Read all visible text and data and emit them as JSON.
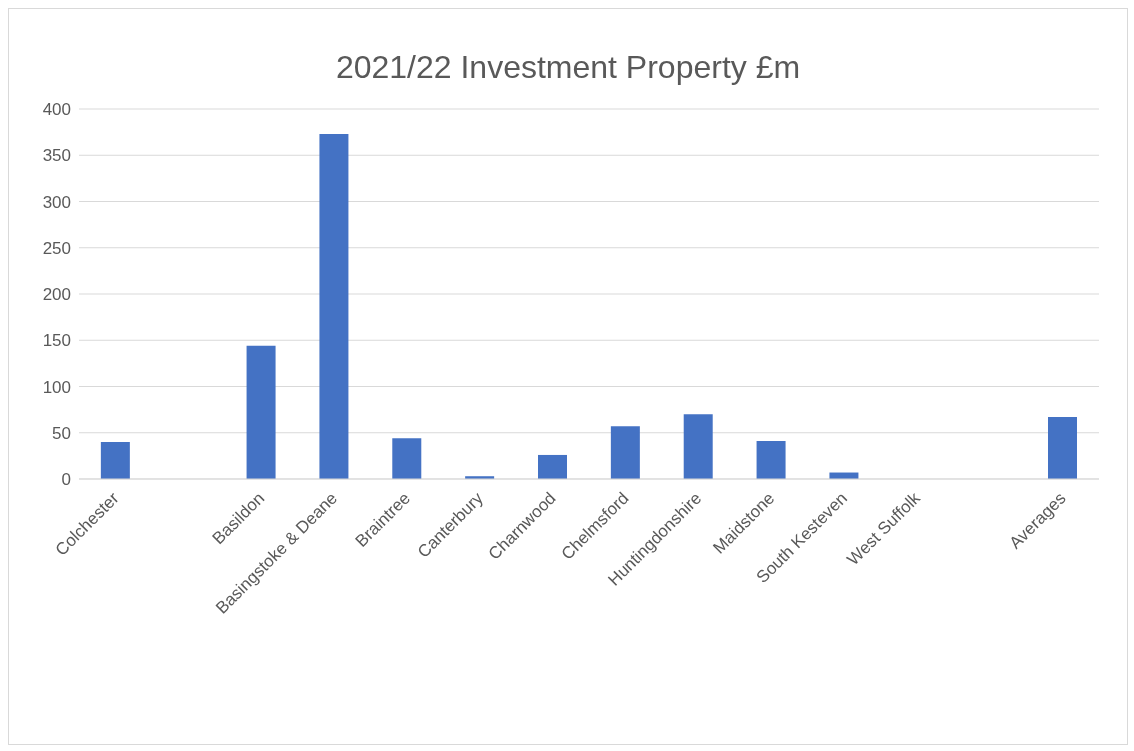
{
  "chart_data": {
    "type": "bar",
    "title": "2021/22 Investment Property £m",
    "categories": [
      "Colchester",
      null,
      "Basildon",
      "Basingstoke & Deane",
      "Braintree",
      "Canterbury",
      "Charnwood",
      "Chelmsford",
      "Huntingdonshire",
      "Maidstone",
      "South Kesteven",
      "West Suffolk",
      null,
      "Averages"
    ],
    "values": [
      40,
      null,
      144,
      373,
      44,
      3,
      26,
      57,
      70,
      41,
      7,
      0,
      null,
      67
    ],
    "color": "#4472c4",
    "ylim": [
      0,
      400
    ],
    "yticks": [
      0,
      50,
      100,
      150,
      200,
      250,
      300,
      350,
      400
    ],
    "grid": "y"
  }
}
